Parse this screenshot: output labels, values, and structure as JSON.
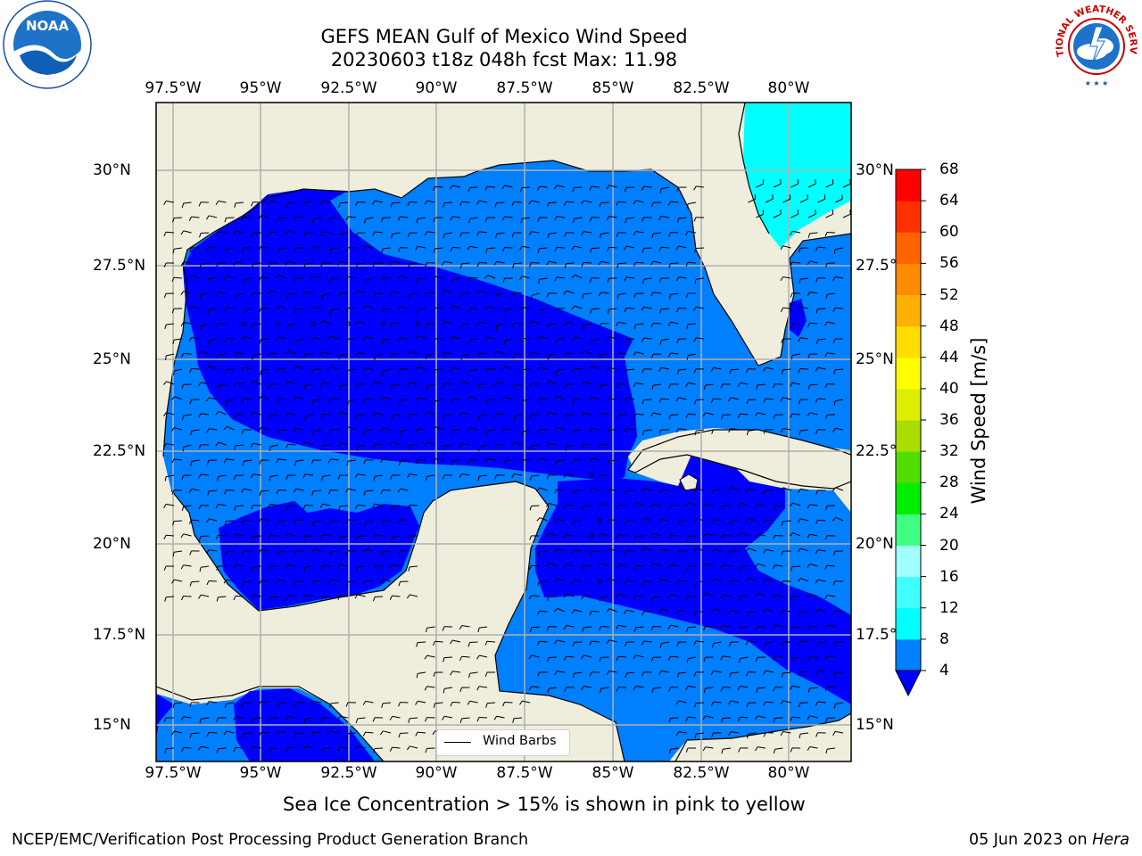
{
  "title": {
    "line1": "GEFS MEAN Gulf of Mexico Wind Speed",
    "line2": "20230603 t18z 048h fcst   Max: 11.98"
  },
  "logos": {
    "left": "noaa-logo",
    "right": "nws-logo",
    "left_text": "NOAA",
    "right_text": "NATIONAL WEATHER SERVICE"
  },
  "x_ticks": [
    "97.5°W",
    "95°W",
    "92.5°W",
    "90°W",
    "87.5°W",
    "85°W",
    "82.5°W",
    "80°W"
  ],
  "y_ticks": [
    "30°N",
    "27.5°N",
    "25°N",
    "22.5°N",
    "20°N",
    "17.5°N",
    "15°N"
  ],
  "legend": {
    "label": "Wind Barbs"
  },
  "colorbar": {
    "title": "Wind Speed [m/s]",
    "labels": [
      "4",
      "8",
      "12",
      "16",
      "20",
      "24",
      "28",
      "32",
      "36",
      "40",
      "44",
      "48",
      "52",
      "56",
      "60",
      "64",
      "68"
    ],
    "colors": [
      "#0000ff",
      "#007fff",
      "#00ffff",
      "#40ffff",
      "#a0ffff",
      "#40ff80",
      "#00ee00",
      "#50dd00",
      "#aadd00",
      "#ddee00",
      "#ffff00",
      "#ffdd00",
      "#ffb000",
      "#ff8c00",
      "#ff6400",
      "#ff3000",
      "#ff0000"
    ],
    "under_color": "#0000ff"
  },
  "map": {
    "land_color": "#efeddc",
    "water_colors": {
      "lt4": "#0000ff",
      "4to8": "#007fff",
      "8to12": "#00ffff"
    }
  },
  "footnote": "Sea Ice Concentration > 15% is shown in pink to yellow",
  "credit_left": "NCEP/EMC/Verification Post Processing Product Generation Branch",
  "credit_right_date": "05 Jun 2023 on ",
  "credit_right_machine": "Hera"
}
